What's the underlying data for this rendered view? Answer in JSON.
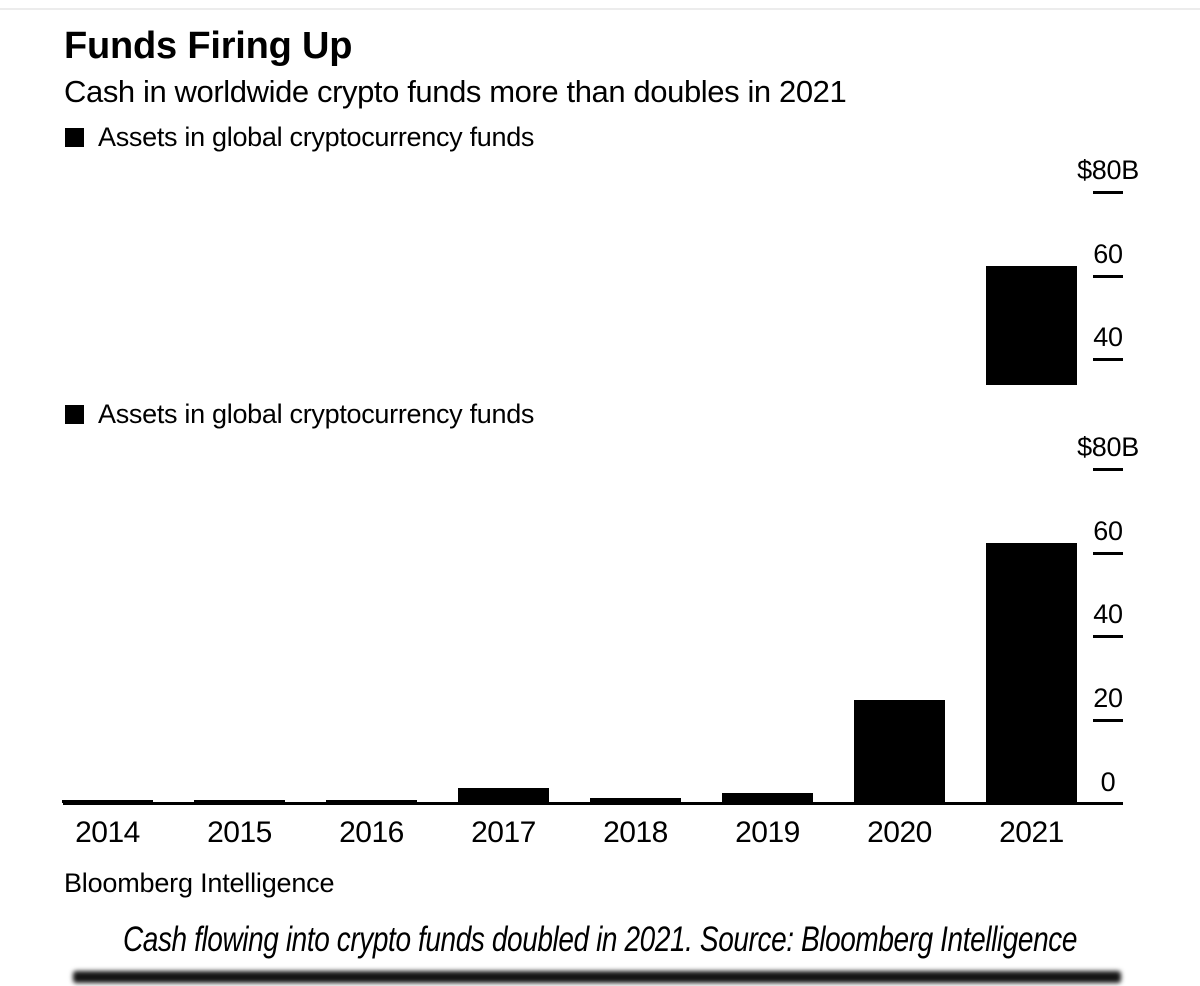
{
  "page": {
    "title": "Funds Firing Up",
    "subtitle": "Cash in worldwide crypto funds more than doubles in 2021",
    "source": "Bloomberg Intelligence",
    "caption": "Cash flowing into crypto funds doubled in 2021. Source: Bloomberg Intelligence"
  },
  "legend": {
    "swatch_color": "#000000",
    "label": "Assets in global cryptocurrency funds"
  },
  "colors": {
    "bar": "#000000",
    "axis": "#000000",
    "text": "#000000",
    "background": "#ffffff"
  },
  "chart_data": [
    {
      "type": "bar",
      "note": "cropped top portion of the same chart; only the 2021 bar top is visible",
      "legend": "Assets in global cryptocurrency funds",
      "categories": [
        "2021"
      ],
      "values": [
        62
      ],
      "unit": "USD billions",
      "yticks": [
        {
          "label": "$80B",
          "value": 80
        },
        {
          "label": "60",
          "value": 60
        },
        {
          "label": "40",
          "value": 40
        }
      ],
      "ylim": [
        0,
        88
      ],
      "grid": false,
      "legend_position": "top-left",
      "axis_side": "right"
    },
    {
      "type": "bar",
      "legend": "Assets in global cryptocurrency funds",
      "categories": [
        "2014",
        "2015",
        "2016",
        "2017",
        "2018",
        "2019",
        "2020",
        "2021"
      ],
      "values": [
        0.7,
        0.7,
        0.8,
        3.5,
        1.2,
        2.4,
        24.5,
        62
      ],
      "unit": "USD billions",
      "yticks": [
        {
          "label": "$80B",
          "value": 80
        },
        {
          "label": "60",
          "value": 60
        },
        {
          "label": "40",
          "value": 40
        },
        {
          "label": "20",
          "value": 20
        },
        {
          "label": "0",
          "value": 0
        }
      ],
      "ylim": [
        0,
        88
      ],
      "grid": false,
      "legend_position": "top-left",
      "axis_side": "right"
    }
  ]
}
